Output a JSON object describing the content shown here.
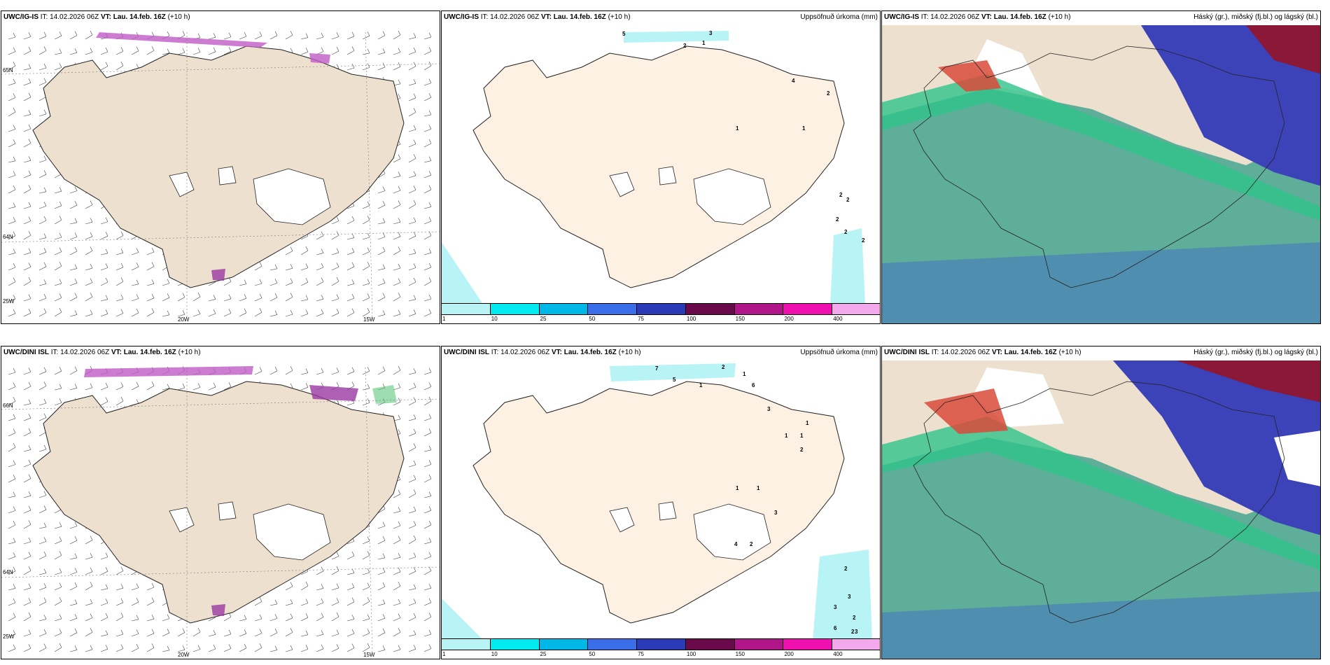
{
  "rows": [
    {
      "model": "UWC/IG-IS",
      "it_label": "IT:",
      "it_value": "14.02.2026 06Z",
      "vt_label": "VT:",
      "vt_value": "Lau. 14.feb. 16Z",
      "lead": "(+10 h)",
      "precip_numbers": [
        "5",
        "3",
        "2",
        "1",
        "4",
        "2",
        "1",
        "1",
        "2",
        "2",
        "2",
        "2",
        "2"
      ],
      "lon_labels": [
        "20W",
        "15W"
      ],
      "lat_labels": [
        "65N",
        "64N",
        "25W"
      ]
    },
    {
      "model": "UWC/DINI ISL",
      "it_label": "IT:",
      "it_value": "14.02.2026 06Z",
      "vt_label": "VT:",
      "vt_value": "Lau. 14.feb. 16Z",
      "lead": "(+10 h)",
      "precip_numbers": [
        "7",
        "5",
        "1",
        "2",
        "1",
        "6",
        "3",
        "1",
        "1",
        "1",
        "2",
        "1",
        "1",
        "3",
        "4",
        "2",
        "2",
        "3",
        "3",
        "2",
        "2",
        "6",
        "3"
      ],
      "lon_labels": [
        "20W",
        "15W"
      ],
      "lat_labels": [
        "66N",
        "64N",
        "25W"
      ]
    }
  ],
  "precip_title": "Uppsöfnuð úrkoma (mm)",
  "cloud_title": "Háský (gr.), miðský (fj.bl.) og lágský (bl.)",
  "colorbar": {
    "ticks": [
      "1",
      "10",
      "25",
      "50",
      "75",
      "100",
      "150",
      "200",
      "400"
    ],
    "colors": [
      "#b8f4f6",
      "#00eaf0",
      "#00b8e8",
      "#3a6ee8",
      "#2b3bb8",
      "#6a0a4a",
      "#b0168a",
      "#f010b0",
      "#f4a8ec"
    ]
  },
  "colors": {
    "land": "#ede0cf",
    "land_precip": "#fdf1e4",
    "precip_light": "#b8f4f6",
    "cloud_low": "#5eae99",
    "cloud_mid": "#3c43b8",
    "cloud_high": "#8a1836"
  }
}
